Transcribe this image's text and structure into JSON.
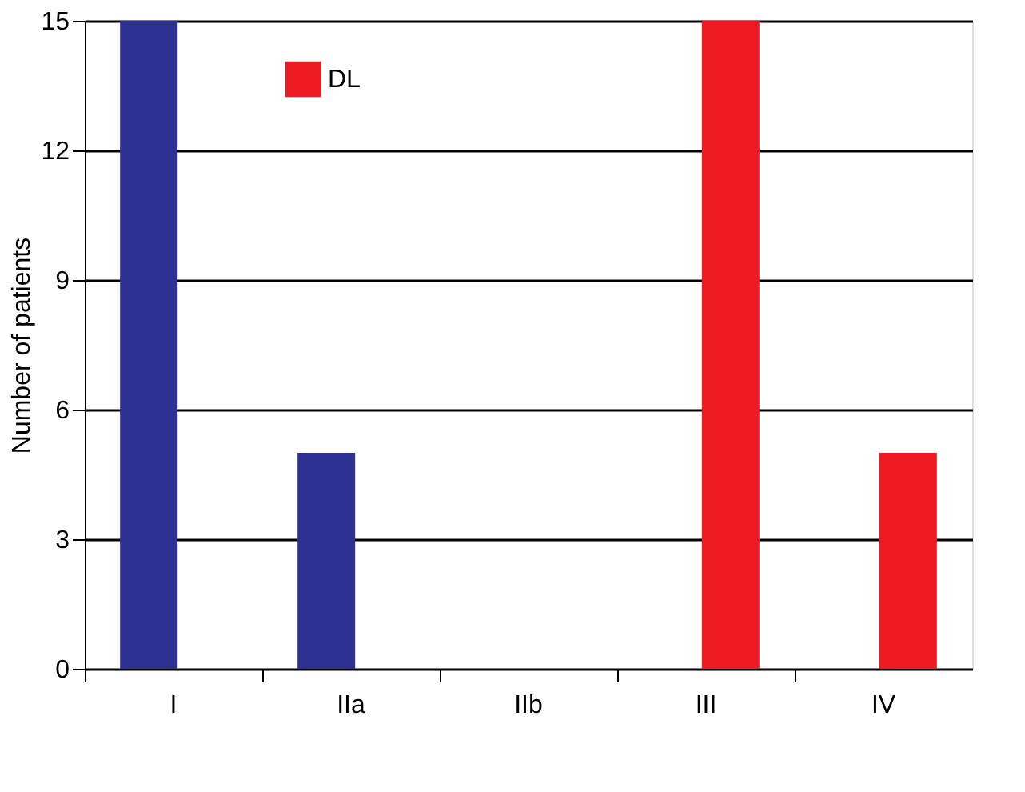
{
  "chart_data": {
    "type": "bar",
    "ylabel": "Number of patients",
    "categories": [
      "I",
      "IIa",
      "IIb",
      "III",
      "IV"
    ],
    "series": [
      {
        "color": "#2e3192",
        "values": [
          15,
          5,
          0,
          0,
          0
        ]
      },
      {
        "name": "DL",
        "color": "#ed1c24",
        "values": [
          0,
          0,
          0,
          15,
          5
        ]
      }
    ],
    "ylim": [
      0,
      15
    ],
    "yticks": [
      0,
      3,
      6,
      9,
      12,
      15
    ],
    "grid": "y",
    "legend": "top left"
  }
}
